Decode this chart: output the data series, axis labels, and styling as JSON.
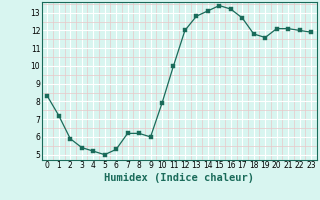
{
  "x": [
    0,
    1,
    2,
    3,
    4,
    5,
    6,
    7,
    8,
    9,
    10,
    11,
    12,
    13,
    14,
    15,
    16,
    17,
    18,
    19,
    20,
    21,
    22,
    23
  ],
  "y": [
    8.3,
    7.2,
    5.9,
    5.4,
    5.2,
    5.0,
    5.3,
    6.2,
    6.2,
    6.0,
    7.9,
    10.0,
    12.0,
    12.8,
    13.1,
    13.4,
    13.2,
    12.7,
    11.8,
    11.6,
    12.1,
    12.1,
    12.0,
    11.9
  ],
  "xlabel": "Humidex (Indice chaleur)",
  "ylim_min": 4.7,
  "ylim_max": 13.6,
  "xlim_min": -0.5,
  "xlim_max": 23.5,
  "yticks": [
    5,
    6,
    7,
    8,
    9,
    10,
    11,
    12,
    13
  ],
  "xticks": [
    0,
    1,
    2,
    3,
    4,
    5,
    6,
    7,
    8,
    9,
    10,
    11,
    12,
    13,
    14,
    15,
    16,
    17,
    18,
    19,
    20,
    21,
    22,
    23
  ],
  "line_color": "#1a6b5a",
  "marker_color": "#1a6b5a",
  "bg_color": "#d8f5f0",
  "grid_major_color": "#ffffff",
  "grid_minor_color": "#e8c8c8",
  "tick_label_fontsize": 5.5,
  "xlabel_fontsize": 7.5,
  "marker_size": 2.5,
  "linewidth": 0.9
}
